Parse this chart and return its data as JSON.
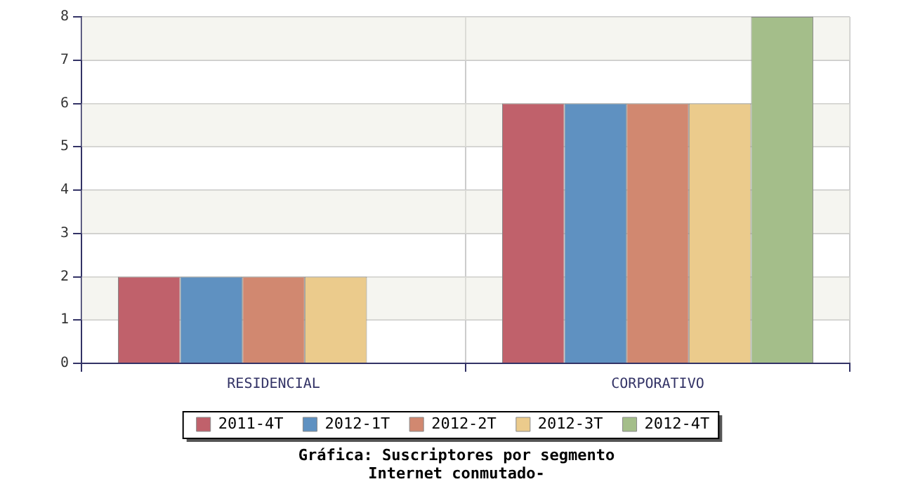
{
  "chart_data": {
    "type": "bar",
    "title": "Gráfica: Suscriptores por segmento",
    "subtitle": "Internet conmutado-",
    "categories": [
      "RESIDENCIAL",
      "CORPORATIVO"
    ],
    "series": [
      {
        "name": "2011-4T",
        "color": "#c0616b",
        "values": [
          2,
          6
        ]
      },
      {
        "name": "2012-1T",
        "color": "#5f91c1",
        "values": [
          2,
          6
        ]
      },
      {
        "name": "2012-2T",
        "color": "#d18870",
        "values": [
          2,
          6
        ]
      },
      {
        "name": "2012-3T",
        "color": "#ebcb8c",
        "values": [
          2,
          6
        ]
      },
      {
        "name": "2012-4T",
        "color": "#a4be8a",
        "values": [
          null,
          8
        ]
      }
    ],
    "ylim": [
      0,
      8
    ],
    "yticks": [
      0,
      1,
      2,
      3,
      4,
      5,
      6,
      7,
      8
    ],
    "grid": true,
    "legend": "bottom"
  }
}
